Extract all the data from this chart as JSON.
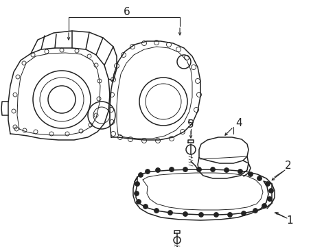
{
  "background_color": "#ffffff",
  "line_color": "#222222",
  "figsize": [
    4.89,
    3.6
  ],
  "dpi": 100,
  "label_fontsize": 10
}
